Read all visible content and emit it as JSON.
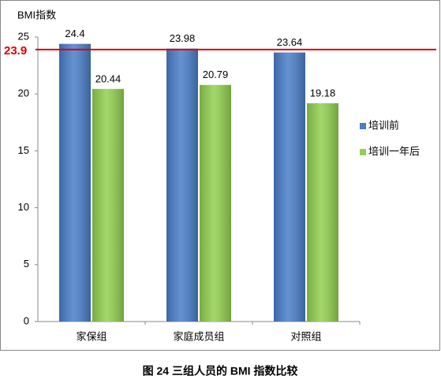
{
  "caption": "图 24 三组人员的 BMI 指数比较",
  "chart_data": {
    "type": "bar",
    "y_label": "BMI指数",
    "categories": [
      "家保组",
      "家庭成员组",
      "对照组"
    ],
    "series": [
      {
        "name": "培训前",
        "color": "#4a7ec9",
        "values": [
          24.4,
          23.98,
          23.64
        ]
      },
      {
        "name": "培训一年后",
        "color": "#92d050",
        "values": [
          20.44,
          20.79,
          19.18
        ]
      }
    ],
    "ylim": [
      0,
      25
    ],
    "yticks": [
      0,
      5,
      10,
      15,
      20,
      25
    ],
    "reference_line": {
      "value": 23.9,
      "color": "#e00000"
    },
    "legend": "right"
  }
}
